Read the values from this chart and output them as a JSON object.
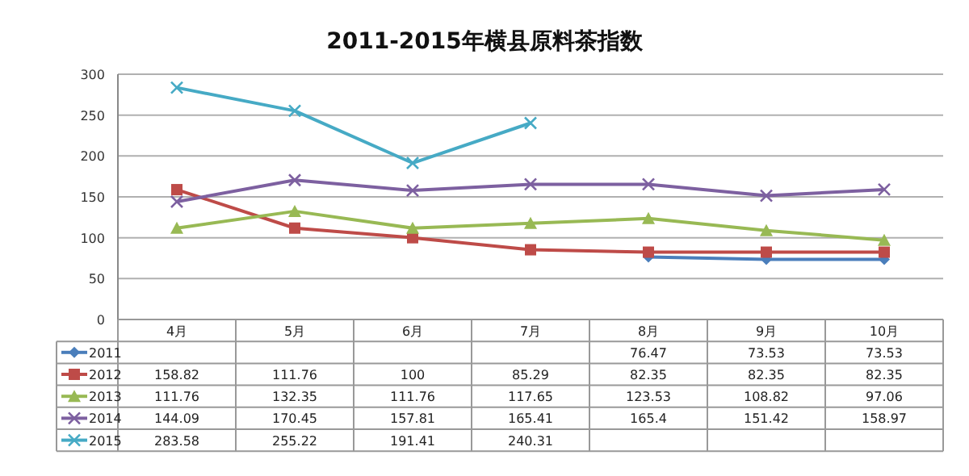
{
  "chart_data": {
    "type": "line",
    "title": "2011-2015年横县原料茶指数",
    "categories": [
      "4月",
      "5月",
      "6月",
      "7月",
      "8月",
      "9月",
      "10月"
    ],
    "ylim": [
      0,
      300
    ],
    "yticks": [
      0,
      50,
      100,
      150,
      200,
      250,
      300
    ],
    "grid": "y",
    "legend": "bottom",
    "data_labels": true,
    "series": [
      {
        "name": "2011",
        "color": "#4a7ebb",
        "marker": "diamond",
        "values": [
          null,
          null,
          null,
          null,
          76.47,
          73.53,
          73.53
        ]
      },
      {
        "name": "2012",
        "color": "#be4b48",
        "marker": "square",
        "values": [
          158.82,
          111.76,
          100,
          85.29,
          82.35,
          82.35,
          82.35
        ]
      },
      {
        "name": "2013",
        "color": "#98b954",
        "marker": "triangle",
        "values": [
          111.76,
          132.35,
          111.76,
          117.65,
          123.53,
          108.82,
          97.06
        ]
      },
      {
        "name": "2014",
        "color": "#7d60a0",
        "marker": "cross",
        "values": [
          144.09,
          170.45,
          157.81,
          165.41,
          165.4,
          151.42,
          158.97
        ]
      },
      {
        "name": "2015",
        "color": "#46aac5",
        "marker": "cross",
        "values": [
          283.58,
          255.22,
          191.41,
          240.31,
          null,
          null,
          null
        ]
      }
    ]
  }
}
